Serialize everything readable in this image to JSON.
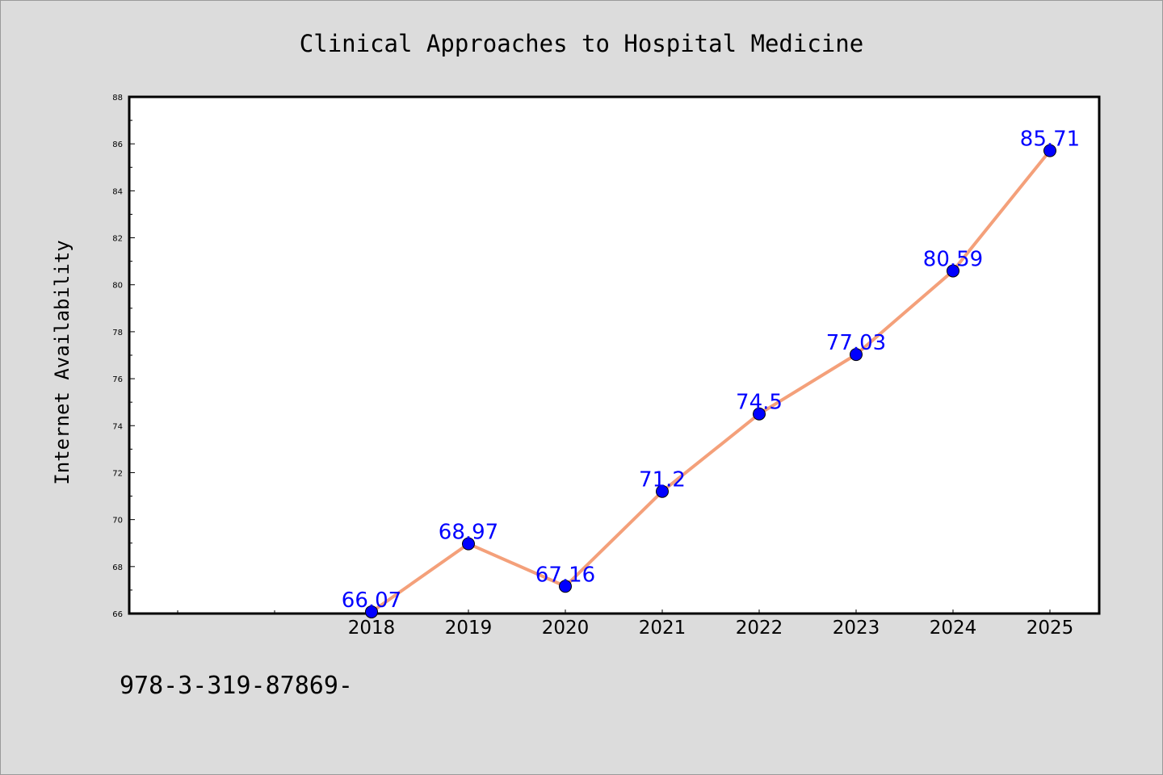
{
  "chart_data": {
    "type": "line",
    "title": "Clinical Approaches to Hospital Medicine",
    "xlabel": "",
    "ylabel": "Internet Availability",
    "categories": [
      "2018",
      "2019",
      "2020",
      "2021",
      "2022",
      "2023",
      "2024",
      "2025"
    ],
    "values": [
      66.07,
      68.97,
      67.16,
      71.2,
      74.5,
      77.03,
      80.59,
      85.71
    ],
    "data_labels": [
      "66.07",
      "68.97",
      "67.16",
      "71.2",
      "74.5",
      "77.03",
      "80.59",
      "85.71"
    ],
    "ylim": [
      66,
      88
    ],
    "yticks": [
      "66",
      "68",
      "70",
      "72",
      "74",
      "76",
      "78",
      "80",
      "82",
      "84",
      "86",
      "88"
    ],
    "grid": false,
    "legend": "none",
    "colors": {
      "line": "#f4a07a",
      "marker": "#0000ff",
      "label": "#0000ff",
      "plot_bg": "#ffffff",
      "page_bg": "#dcdcdc"
    }
  },
  "footer": {
    "text": "978-3-319-87869-"
  }
}
